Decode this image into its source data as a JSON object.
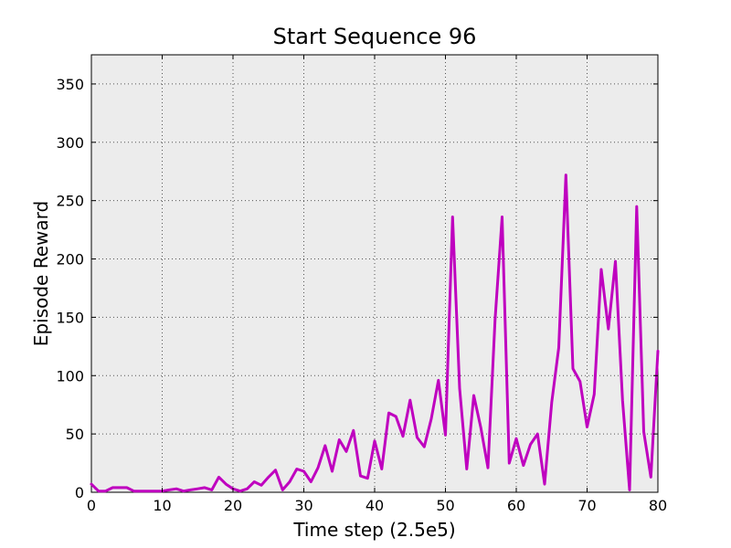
{
  "chart_data": {
    "type": "line",
    "title": "Start Sequence 96",
    "xlabel": "Time step (2.5e5)",
    "ylabel": "Episode Reward",
    "xlim": [
      0,
      80
    ],
    "ylim": [
      0,
      375
    ],
    "xticks": [
      0,
      10,
      20,
      30,
      40,
      50,
      60,
      70,
      80
    ],
    "yticks": [
      0,
      50,
      100,
      150,
      200,
      250,
      300,
      350
    ],
    "grid": true,
    "colors": {
      "line": "#bf00bf",
      "plot_bg": "#ececec"
    },
    "series": [
      {
        "x": [
          0,
          1,
          2,
          3,
          4,
          5,
          6,
          7,
          8,
          9,
          10,
          11,
          12,
          13,
          14,
          15,
          16,
          17,
          18,
          19,
          20,
          21,
          22,
          23,
          24,
          25,
          26,
          27,
          28,
          29,
          30,
          31,
          32,
          33,
          34,
          35,
          36,
          37,
          38,
          39,
          40,
          41,
          42,
          43,
          44,
          45,
          46,
          47,
          48,
          49,
          50,
          51,
          52,
          53,
          54,
          55,
          56,
          57,
          58,
          59,
          60,
          61,
          62,
          63,
          64,
          65,
          66,
          67,
          68,
          69,
          70,
          71,
          72,
          73,
          74,
          75,
          76,
          77,
          78,
          79,
          80
        ],
        "values": [
          7,
          1,
          1,
          4,
          4,
          4,
          1,
          1,
          1,
          1,
          1,
          2,
          3,
          1,
          2,
          3,
          4,
          2,
          13,
          7,
          3,
          1,
          3,
          9,
          6,
          13,
          19,
          2,
          9,
          20,
          18,
          9,
          21,
          40,
          18,
          45,
          35,
          53,
          14,
          12,
          44,
          20,
          68,
          65,
          48,
          79,
          47,
          39,
          63,
          96,
          49,
          236,
          89,
          20,
          83,
          55,
          21,
          148,
          236,
          25,
          46,
          23,
          41,
          50,
          7,
          77,
          124,
          272,
          106,
          95,
          56,
          84,
          191,
          140,
          198,
          79,
          2,
          245,
          52,
          13,
          121
        ]
      }
    ]
  }
}
